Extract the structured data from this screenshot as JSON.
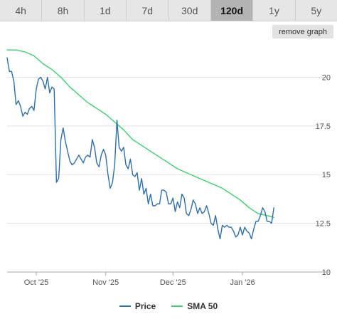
{
  "ranges": {
    "items": [
      {
        "label": "4h"
      },
      {
        "label": "8h"
      },
      {
        "label": "1d"
      },
      {
        "label": "7d"
      },
      {
        "label": "30d"
      },
      {
        "label": "120d",
        "active": true
      },
      {
        "label": "1y"
      },
      {
        "label": "5y"
      }
    ]
  },
  "remove_graph_label": "remove graph",
  "colors": {
    "price": "#2f6fa8",
    "sma": "#3ecf72",
    "grid": "#e3e3e3",
    "axis": "#aaaaaa"
  },
  "chart_data": {
    "type": "line",
    "title": "",
    "xlabel": "",
    "ylabel": "",
    "ylim": [
      10,
      21.7
    ],
    "yticks": [
      10,
      12.5,
      15,
      17.5,
      20
    ],
    "ytick_labels": [
      "10",
      "12.5",
      "15",
      "17.5",
      "20"
    ],
    "xlim": [
      "2025-09-18",
      "2026-02-09"
    ],
    "xticks": [
      "2025-10-01",
      "2025-11-01",
      "2025-12-01",
      "2026-01-01"
    ],
    "xtick_labels": [
      "Oct '25",
      "Nov '25",
      "Dec '25",
      "Jan '26"
    ],
    "grid": true,
    "legend": "bottom",
    "series": [
      {
        "name": "Price",
        "color": "#2f6fa8",
        "x": [
          "2025-09-18",
          "2025-09-19",
          "2025-09-20",
          "2025-09-21",
          "2025-09-22",
          "2025-09-23",
          "2025-09-24",
          "2025-09-25",
          "2025-09-26",
          "2025-09-27",
          "2025-09-28",
          "2025-09-29",
          "2025-09-30",
          "2025-10-01",
          "2025-10-02",
          "2025-10-03",
          "2025-10-04",
          "2025-10-05",
          "2025-10-06",
          "2025-10-07",
          "2025-10-08",
          "2025-10-09",
          "2025-10-10",
          "2025-10-11",
          "2025-10-12",
          "2025-10-13",
          "2025-10-14",
          "2025-10-15",
          "2025-10-16",
          "2025-10-17",
          "2025-10-18",
          "2025-10-19",
          "2025-10-20",
          "2025-10-21",
          "2025-10-22",
          "2025-10-23",
          "2025-10-24",
          "2025-10-25",
          "2025-10-26",
          "2025-10-27",
          "2025-10-28",
          "2025-10-29",
          "2025-10-30",
          "2025-10-31",
          "2025-11-01",
          "2025-11-02",
          "2025-11-03",
          "2025-11-04",
          "2025-11-05",
          "2025-11-06",
          "2025-11-07",
          "2025-11-08",
          "2025-11-09",
          "2025-11-10",
          "2025-11-11",
          "2025-11-12",
          "2025-11-13",
          "2025-11-14",
          "2025-11-15",
          "2025-11-16",
          "2025-11-17",
          "2025-11-18",
          "2025-11-19",
          "2025-11-20",
          "2025-11-21",
          "2025-11-22",
          "2025-11-23",
          "2025-11-24",
          "2025-11-25",
          "2025-11-26",
          "2025-11-27",
          "2025-11-28",
          "2025-11-29",
          "2025-11-30",
          "2025-12-01",
          "2025-12-02",
          "2025-12-03",
          "2025-12-04",
          "2025-12-05",
          "2025-12-06",
          "2025-12-07",
          "2025-12-08",
          "2025-12-09",
          "2025-12-10",
          "2025-12-11",
          "2025-12-12",
          "2025-12-13",
          "2025-12-14",
          "2025-12-15",
          "2025-12-16",
          "2025-12-17",
          "2025-12-18",
          "2025-12-19",
          "2025-12-20",
          "2025-12-21",
          "2025-12-22",
          "2025-12-23",
          "2025-12-24",
          "2025-12-25",
          "2025-12-26",
          "2025-12-27",
          "2025-12-28",
          "2025-12-29",
          "2025-12-30",
          "2025-12-31",
          "2026-01-01",
          "2026-01-02",
          "2026-01-03",
          "2026-01-04",
          "2026-01-05",
          "2026-01-06",
          "2026-01-07",
          "2026-01-08",
          "2026-01-09",
          "2026-01-10",
          "2026-01-11",
          "2026-01-12",
          "2026-01-13",
          "2026-01-14",
          "2026-01-15"
        ],
        "y": [
          21.0,
          20.3,
          20.3,
          19.8,
          18.6,
          18.8,
          18.5,
          18.0,
          18.2,
          18.1,
          18.4,
          18.5,
          18.3,
          19.4,
          19.9,
          20.0,
          19.8,
          19.4,
          20.0,
          19.2,
          19.5,
          19.4,
          14.6,
          14.8,
          16.8,
          17.4,
          16.7,
          16.2,
          15.7,
          15.5,
          15.6,
          15.8,
          16.0,
          15.8,
          15.6,
          15.9,
          16.0,
          15.9,
          16.8,
          16.4,
          15.6,
          15.4,
          16.0,
          16.3,
          16.0,
          15.0,
          14.3,
          14.6,
          15.5,
          17.8,
          16.4,
          16.2,
          16.4,
          15.5,
          15.3,
          15.8,
          15.0,
          14.9,
          15.1,
          14.2,
          14.8,
          14.0,
          14.3,
          13.5,
          14.0,
          13.4,
          13.4,
          13.5,
          13.5,
          14.2,
          14.2,
          14.1,
          13.5,
          13.5,
          13.8,
          13.1,
          13.6,
          13.3,
          14.0,
          13.8,
          13.0,
          12.9,
          13.2,
          13.7,
          13.5,
          13.0,
          13.3,
          13.0,
          13.1,
          13.4,
          13.0,
          12.5,
          12.4,
          12.9,
          12.2,
          11.7,
          12.4,
          12.3,
          12.4,
          12.3,
          12.3,
          12.1,
          11.8,
          11.9,
          12.3,
          11.9,
          12.3,
          12.1,
          12.0,
          11.7,
          12.2,
          12.6,
          12.6,
          12.9,
          13.3,
          13.1,
          12.6,
          12.6,
          12.5,
          13.3
        ]
      },
      {
        "name": "SMA 50",
        "color": "#3ecf72",
        "x": [
          "2025-09-18",
          "2025-09-22",
          "2025-09-26",
          "2025-09-30",
          "2025-10-04",
          "2025-10-08",
          "2025-10-12",
          "2025-10-16",
          "2025-10-20",
          "2025-10-24",
          "2025-10-28",
          "2025-11-01",
          "2025-11-05",
          "2025-11-09",
          "2025-11-13",
          "2025-11-17",
          "2025-11-21",
          "2025-11-25",
          "2025-11-29",
          "2025-12-03",
          "2025-12-07",
          "2025-12-11",
          "2025-12-15",
          "2025-12-19",
          "2025-12-23",
          "2025-12-27",
          "2025-12-31",
          "2026-01-04",
          "2026-01-08",
          "2026-01-12",
          "2026-01-15"
        ],
        "y": [
          21.4,
          21.4,
          21.3,
          21.1,
          20.7,
          20.4,
          20.0,
          19.5,
          19.1,
          18.7,
          18.4,
          18.1,
          17.7,
          17.3,
          16.8,
          16.5,
          16.2,
          15.9,
          15.6,
          15.3,
          15.1,
          14.9,
          14.7,
          14.5,
          14.3,
          14.0,
          13.7,
          13.3,
          13.0,
          12.9,
          12.8
        ]
      }
    ]
  }
}
